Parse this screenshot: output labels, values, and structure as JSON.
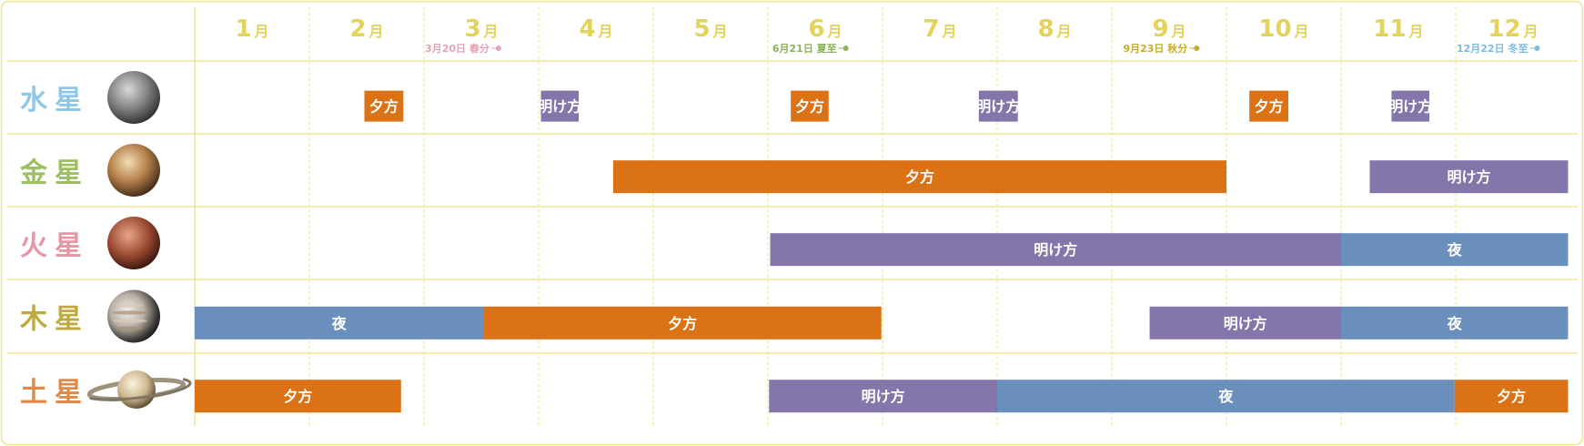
{
  "chart_data": {
    "type": "gantt",
    "title": "",
    "month_unit": "月",
    "months": [
      "1",
      "2",
      "3",
      "4",
      "5",
      "6",
      "7",
      "8",
      "9",
      "10",
      "11",
      "12"
    ],
    "x_range": [
      1,
      13
    ],
    "events": [
      {
        "label": "3月20日 春分",
        "month": 3.65,
        "color": "#e9a2b4"
      },
      {
        "label": "6月21日 夏至",
        "month": 6.68,
        "color": "#8cb25a"
      },
      {
        "label": "9月23日 秋分",
        "month": 9.74,
        "color": "#c8ab2e"
      },
      {
        "label": "12月22日 冬至",
        "month": 12.71,
        "color": "#7cbbe0"
      }
    ],
    "planets": [
      {
        "name": "水星",
        "name_color": "#8ec8e8",
        "icon": "mercury-icon",
        "bar_height": "small",
        "periods": [
          {
            "label": "夕方",
            "start": 2.48,
            "end": 2.82,
            "type": "evening"
          },
          {
            "label": "明け方",
            "start": 4.02,
            "end": 4.35,
            "type": "dawn"
          },
          {
            "label": "夕方",
            "start": 6.2,
            "end": 6.53,
            "type": "evening"
          },
          {
            "label": "明け方",
            "start": 7.84,
            "end": 8.18,
            "type": "dawn"
          },
          {
            "label": "夕方",
            "start": 10.2,
            "end": 10.54,
            "type": "evening"
          },
          {
            "label": "明け方",
            "start": 11.44,
            "end": 11.77,
            "type": "dawn"
          }
        ]
      },
      {
        "name": "金星",
        "name_color": "#9cbf62",
        "icon": "venus-icon",
        "bar_height": "large",
        "periods": [
          {
            "label": "夕方",
            "start": 4.65,
            "end": 10.0,
            "type": "evening"
          },
          {
            "label": "明け方",
            "start": 11.25,
            "end": 12.98,
            "type": "dawn"
          }
        ]
      },
      {
        "name": "火星",
        "name_color": "#e797a4",
        "icon": "mars-icon",
        "bar_height": "large",
        "periods": [
          {
            "label": "明け方",
            "start": 6.02,
            "end": 11.0,
            "type": "dawn"
          },
          {
            "label": "夜",
            "start": 11.0,
            "end": 12.98,
            "type": "night"
          }
        ]
      },
      {
        "name": "木星",
        "name_color": "#c0a93e",
        "icon": "jupiter-icon",
        "bar_height": "large",
        "periods": [
          {
            "label": "夜",
            "start": 1.0,
            "end": 3.52,
            "type": "night"
          },
          {
            "label": "夕方",
            "start": 3.52,
            "end": 6.99,
            "type": "evening"
          },
          {
            "label": "明け方",
            "start": 9.33,
            "end": 11.0,
            "type": "dawn"
          },
          {
            "label": "夜",
            "start": 11.0,
            "end": 12.98,
            "type": "night"
          }
        ]
      },
      {
        "name": "土星",
        "name_color": "#e08a4a",
        "icon": "saturn-icon",
        "bar_height": "large",
        "periods": [
          {
            "label": "夕方",
            "start": 1.0,
            "end": 2.8,
            "type": "evening"
          },
          {
            "label": "明け方",
            "start": 6.01,
            "end": 8.0,
            "type": "dawn"
          },
          {
            "label": "夜",
            "start": 8.0,
            "end": 11.99,
            "type": "night"
          },
          {
            "label": "夕方",
            "start": 11.99,
            "end": 12.98,
            "type": "evening"
          }
        ]
      }
    ],
    "colors": {
      "evening": "#dc7216",
      "dawn": "#8475ab",
      "night": "#6b8fbd",
      "grid": "#ece07a",
      "month_text": "#e4d35a",
      "frame": "#efe58a"
    }
  }
}
